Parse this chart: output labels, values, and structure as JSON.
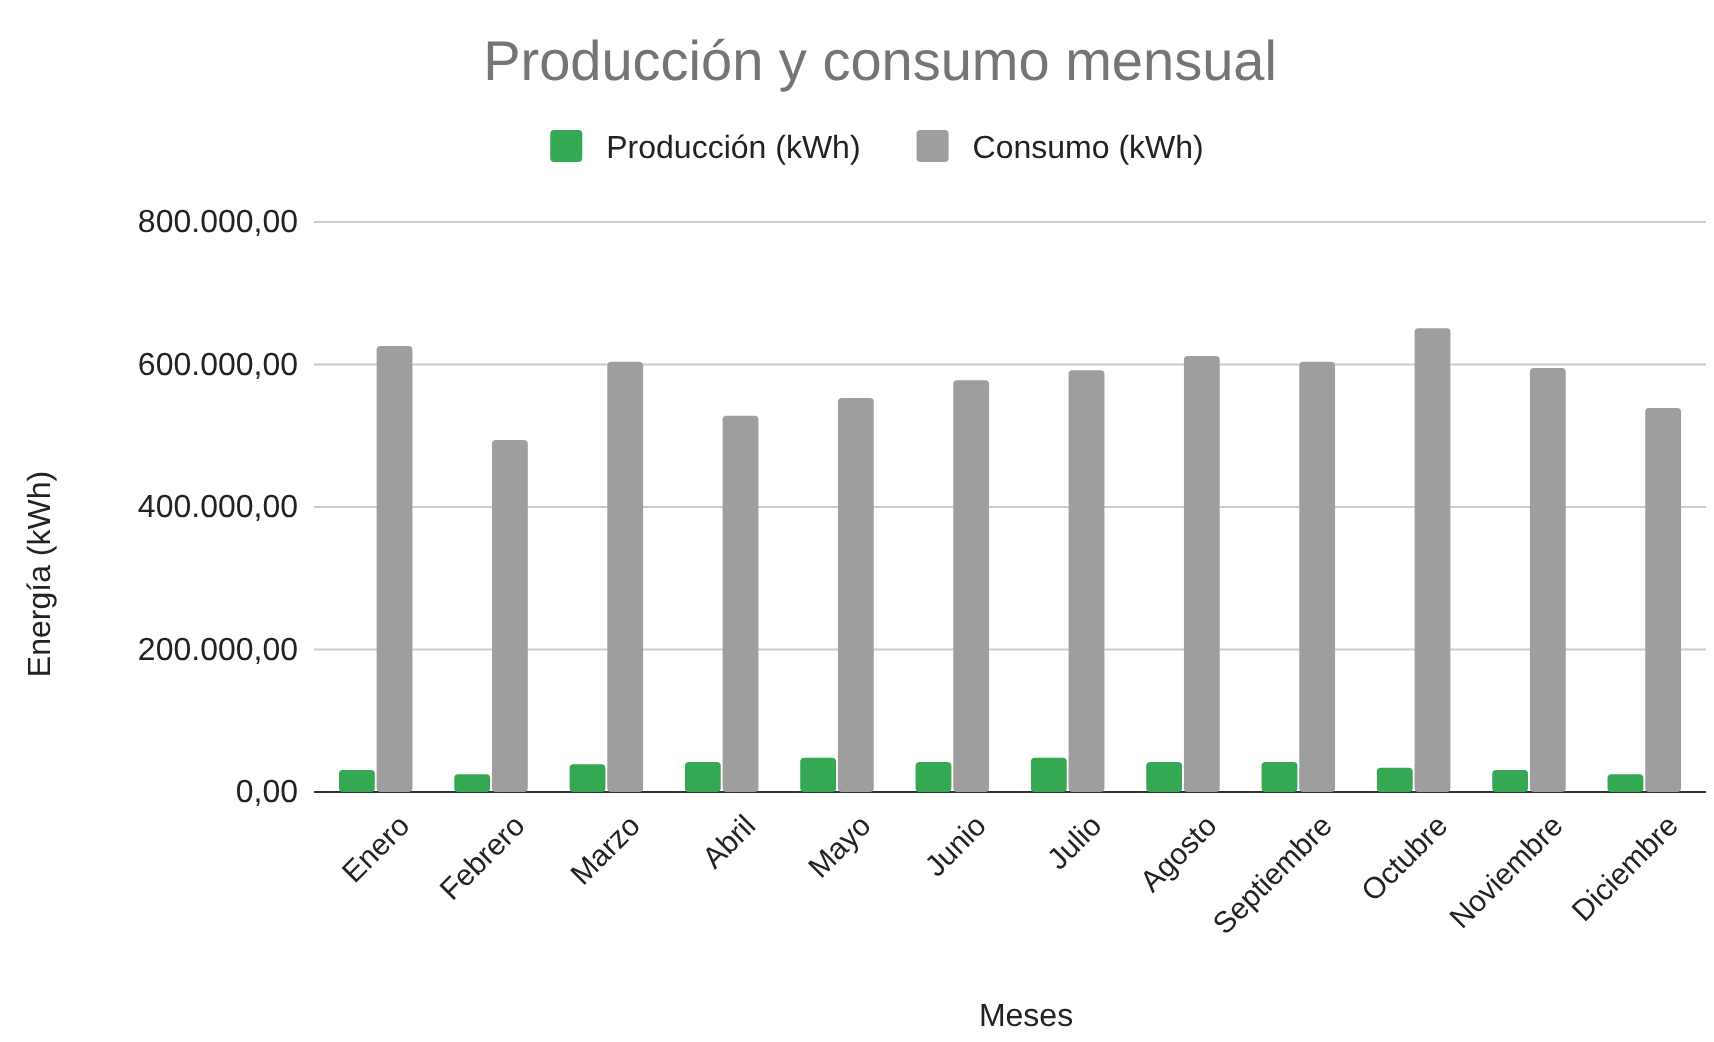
{
  "chart_data": {
    "type": "bar",
    "title": "Producción y consumo mensual",
    "xlabel": "Meses",
    "ylabel": "Energía (kWh)",
    "categories": [
      "Enero",
      "Febrero",
      "Marzo",
      "Abril",
      "Mayo",
      "Junio",
      "Julio",
      "Agosto",
      "Septiembre",
      "Octubre",
      "Noviembre",
      "Diciembre"
    ],
    "series": [
      {
        "name": "Producción (kWh)",
        "color": "#34a853",
        "values": [
          31000,
          25000,
          39000,
          42000,
          48000,
          42000,
          48000,
          42000,
          42000,
          34000,
          31000,
          25000
        ]
      },
      {
        "name": "Consumo (kWh)",
        "color": "#9e9e9e",
        "values": [
          626000,
          494000,
          604000,
          528000,
          553000,
          578000,
          592000,
          612000,
          604000,
          651000,
          595000,
          539000
        ]
      }
    ],
    "ylim": [
      0,
      800000
    ],
    "yticks": [
      {
        "value": 0,
        "label": "0,00"
      },
      {
        "value": 200000,
        "label": "200.000,00"
      },
      {
        "value": 400000,
        "label": "400.000,00"
      },
      {
        "value": 600000,
        "label": "600.000,00"
      },
      {
        "value": 800000,
        "label": "800.000,00"
      }
    ],
    "grid": "y",
    "legend": "top"
  }
}
